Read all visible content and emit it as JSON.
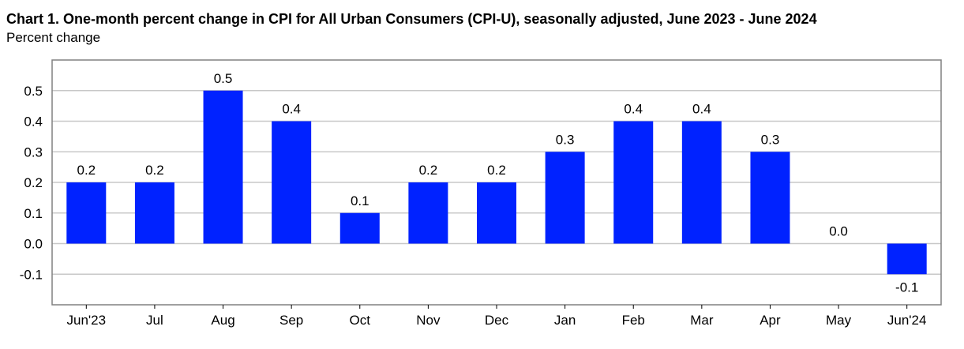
{
  "chart_data": {
    "type": "bar",
    "title": "Chart 1. One-month percent change in CPI for All Urban Consumers (CPI-U), seasonally adjusted, June 2023 - June 2024",
    "subtitle": "Percent change",
    "categories": [
      "Jun'23",
      "Jul",
      "Aug",
      "Sep",
      "Oct",
      "Nov",
      "Dec",
      "Jan",
      "Feb",
      "Mar",
      "Apr",
      "May",
      "Jun'24"
    ],
    "values": [
      0.2,
      0.2,
      0.5,
      0.4,
      0.1,
      0.2,
      0.2,
      0.3,
      0.4,
      0.4,
      0.3,
      0.0,
      -0.1
    ],
    "data_labels": [
      "0.2",
      "0.2",
      "0.5",
      "0.4",
      "0.1",
      "0.2",
      "0.2",
      "0.3",
      "0.4",
      "0.4",
      "0.3",
      "0.0",
      "-0.1"
    ],
    "yticks": [
      -0.1,
      0.0,
      0.1,
      0.2,
      0.3,
      0.4,
      0.5
    ],
    "ytick_labels": [
      "-0.1",
      "0.0",
      "0.1",
      "0.2",
      "0.3",
      "0.4",
      "0.5"
    ],
    "ylim": [
      -0.2,
      0.6
    ],
    "grid": true,
    "bar_color": "#0022ff",
    "xlabel": "",
    "ylabel": ""
  }
}
